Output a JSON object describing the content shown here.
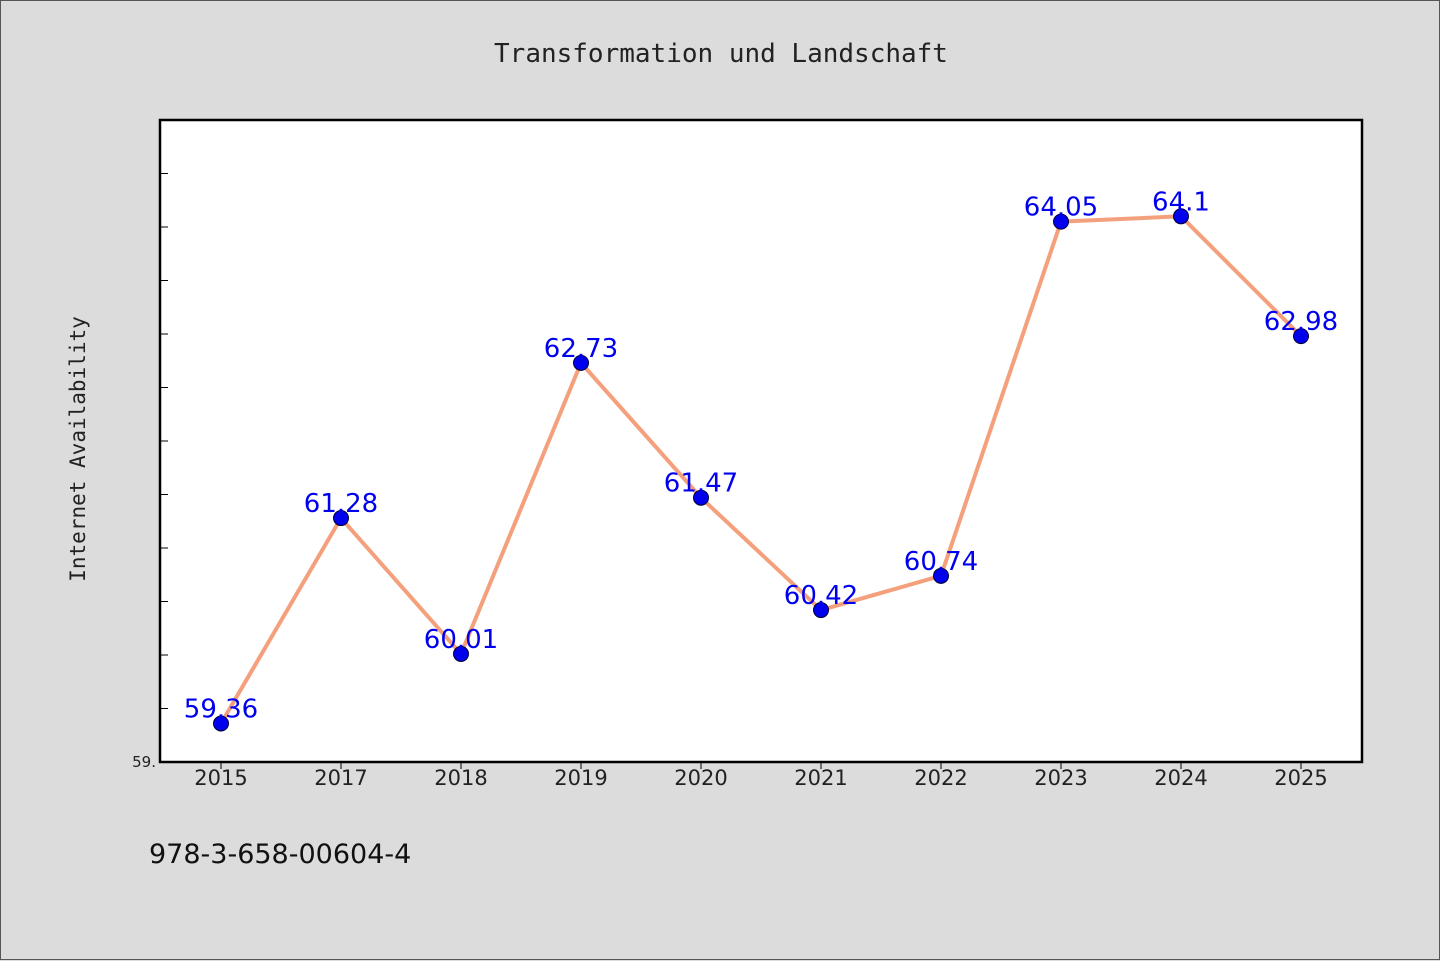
{
  "chart_data": {
    "type": "line",
    "title": "Transformation und Landschaft",
    "xlabel": "",
    "ylabel": "Internet Availability",
    "categories": [
      "2015",
      "2017",
      "2018",
      "2019",
      "2020",
      "2021",
      "2022",
      "2023",
      "2024",
      "2025"
    ],
    "series": [
      {
        "values": [
          59.36,
          61.28,
          60.01,
          62.73,
          61.47,
          60.42,
          60.74,
          64.05,
          64.1,
          62.98
        ],
        "labels": [
          "59.36",
          "61.28",
          "60.01",
          "62.73",
          "61.47",
          "60.42",
          "60.74",
          "64.05",
          "64.1",
          "62.98"
        ],
        "line_color": "#f4a07c",
        "marker_color": "#0000ee"
      }
    ],
    "ylim": [
      59.0,
      65.0
    ],
    "ytick_label": "59.",
    "grid": false,
    "legend": "none"
  },
  "caption": "978-3-658-00604-4",
  "colors": {
    "background": "#dcdcdc",
    "plot_background": "#ffffff",
    "line": "#f4a07c",
    "marker": "#0000ee",
    "label": "#0000ee"
  }
}
